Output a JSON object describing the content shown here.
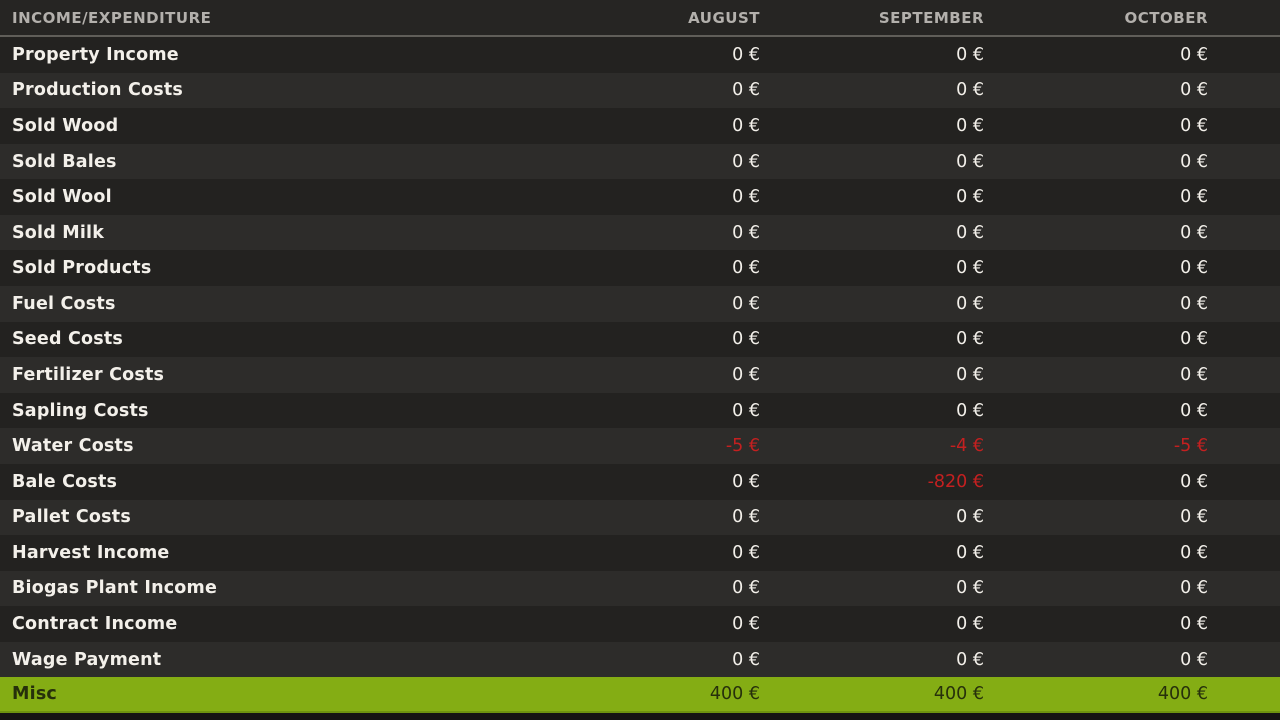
{
  "table": {
    "header_label": "INCOME/EXPENDITURE",
    "columns": [
      "AUGUST",
      "SEPTEMBER",
      "OCTOBER"
    ],
    "rows": [
      {
        "label": "Property Income",
        "values": [
          "0 €",
          "0 €",
          "0 €"
        ]
      },
      {
        "label": "Production Costs",
        "values": [
          "0 €",
          "0 €",
          "0 €"
        ]
      },
      {
        "label": "Sold Wood",
        "values": [
          "0 €",
          "0 €",
          "0 €"
        ]
      },
      {
        "label": "Sold Bales",
        "values": [
          "0 €",
          "0 €",
          "0 €"
        ]
      },
      {
        "label": "Sold Wool",
        "values": [
          "0 €",
          "0 €",
          "0 €"
        ]
      },
      {
        "label": "Sold Milk",
        "values": [
          "0 €",
          "0 €",
          "0 €"
        ]
      },
      {
        "label": "Sold Products",
        "values": [
          "0 €",
          "0 €",
          "0 €"
        ]
      },
      {
        "label": "Fuel Costs",
        "values": [
          "0 €",
          "0 €",
          "0 €"
        ]
      },
      {
        "label": "Seed Costs",
        "values": [
          "0 €",
          "0 €",
          "0 €"
        ]
      },
      {
        "label": "Fertilizer Costs",
        "values": [
          "0 €",
          "0 €",
          "0 €"
        ]
      },
      {
        "label": "Sapling Costs",
        "values": [
          "0 €",
          "0 €",
          "0 €"
        ]
      },
      {
        "label": "Water Costs",
        "values": [
          "-5 €",
          "-4 €",
          "-5 €"
        ]
      },
      {
        "label": "Bale Costs",
        "values": [
          "0 €",
          "-820 €",
          "0 €"
        ]
      },
      {
        "label": "Pallet Costs",
        "values": [
          "0 €",
          "0 €",
          "0 €"
        ]
      },
      {
        "label": "Harvest Income",
        "values": [
          "0 €",
          "0 €",
          "0 €"
        ]
      },
      {
        "label": "Biogas Plant Income",
        "values": [
          "0 €",
          "0 €",
          "0 €"
        ]
      },
      {
        "label": "Contract Income",
        "values": [
          "0 €",
          "0 €",
          "0 €"
        ]
      },
      {
        "label": "Wage Payment",
        "values": [
          "0 €",
          "0 €",
          "0 €"
        ]
      },
      {
        "label": "Misc",
        "values": [
          "400 €",
          "400 €",
          "400 €"
        ],
        "highlighted": true
      }
    ]
  },
  "colors": {
    "header_bg": "#262523",
    "row_dark": "#232220",
    "row_light": "#2d2c2a",
    "highlight_green": "#84ad14",
    "negative_red": "#c42020",
    "text_light": "#f3f0ea",
    "header_text": "#b3b0ac",
    "highlight_text": "#26300b"
  }
}
